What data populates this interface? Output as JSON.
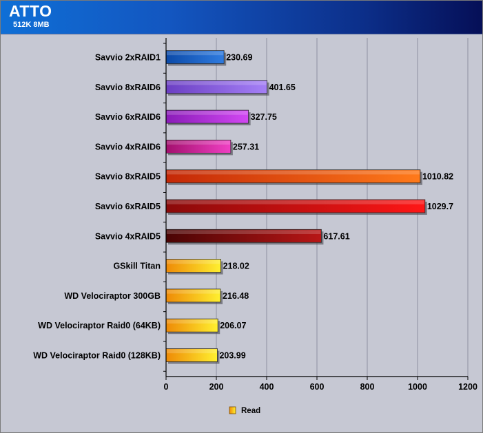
{
  "header": {
    "title": "ATTO",
    "subtitle": "512K 8MB"
  },
  "colors": {
    "plot_background": "#c6c8d3",
    "header_start": "#0f6fd6",
    "header_end": "#050f57",
    "gold_bar": "#f7c619"
  },
  "chart_data": {
    "type": "bar",
    "orientation": "horizontal",
    "categories": [
      "Savvio 2xRAID1",
      "Savvio 8xRAID6",
      "Savvio 6xRAID6",
      "Savvio 4xRAID6",
      "Savvio 8xRAID5",
      "Savvio 6xRAID5",
      "Savvio 4xRAID5",
      "GSkill Titan",
      "WD Velociraptor 300GB",
      "WD Velociraptor Raid0 (64KB)",
      "WD Velociraptor Raid0 (128KB)"
    ],
    "series": [
      {
        "name": "Read",
        "values": [
          230.69,
          401.65,
          327.75,
          257.31,
          1010.82,
          1029.7,
          617.61,
          218.02,
          216.48,
          206.07,
          203.99
        ],
        "value_labels": [
          "230.69",
          "401.65",
          "327.75",
          "257.31",
          "1010.82",
          "1029.7",
          "617.61",
          "218.02",
          "216.48",
          "206.07",
          "203.99"
        ]
      }
    ],
    "bar_colors": [
      [
        "#0c4aa8",
        "#2f7bdf"
      ],
      [
        "#6b3fc3",
        "#a580f6"
      ],
      [
        "#8a1cb8",
        "#d248f2"
      ],
      [
        "#a3106e",
        "#f040c4"
      ],
      [
        "#c42807",
        "#ff7a1a"
      ],
      [
        "#8a0a0a",
        "#ff1616"
      ],
      [
        "#4a0404",
        "#b81616"
      ],
      [
        "#ee8a06",
        "#fff030"
      ],
      [
        "#ee8a06",
        "#fff030"
      ],
      [
        "#ee8a06",
        "#fff030"
      ],
      [
        "#ee8a06",
        "#fff030"
      ]
    ],
    "xlim": [
      0,
      1200
    ],
    "x_ticks": [
      0,
      200,
      400,
      600,
      800,
      1000,
      1200
    ],
    "x_tick_labels": [
      "0",
      "200",
      "400",
      "600",
      "800",
      "1000",
      "1200"
    ],
    "grid": true,
    "legend": {
      "position": "bottom-center",
      "entries": [
        "Read"
      ]
    }
  }
}
